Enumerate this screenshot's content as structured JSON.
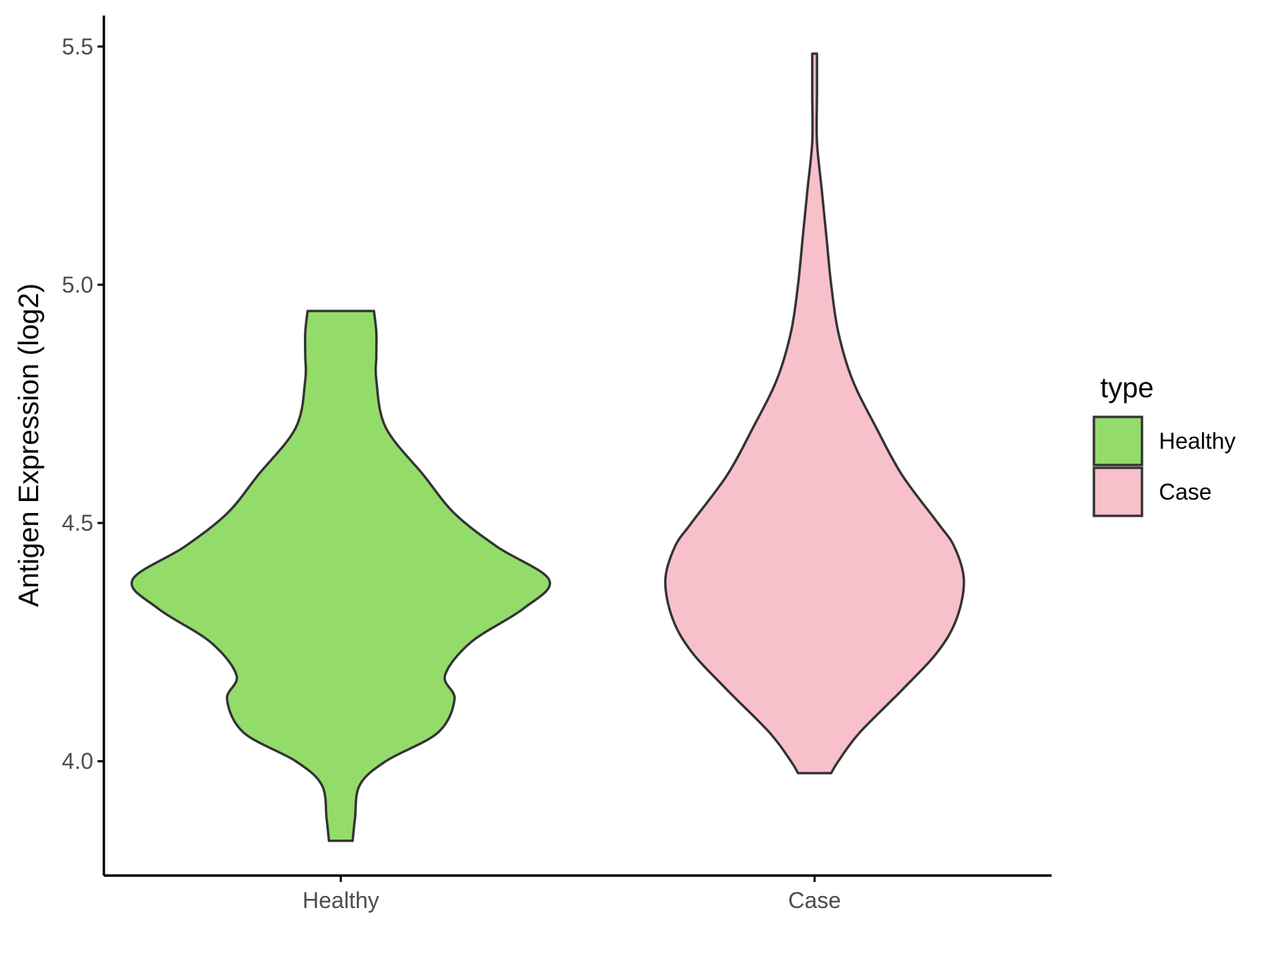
{
  "chart_data": {
    "type": "violin",
    "title": "",
    "xlabel": "",
    "ylabel": "Antigen Expression (log2)",
    "ylim": [
      3.76,
      5.565
    ],
    "yticks": [
      4.0,
      4.5,
      5.0,
      5.5
    ],
    "ytick_labels": [
      "4.0",
      "4.5",
      "5.0",
      "5.5"
    ],
    "categories": [
      "Healthy",
      "Case"
    ],
    "legend": {
      "title": "type",
      "position": "right",
      "entries": [
        "Healthy",
        "Case"
      ]
    },
    "grid": false,
    "series": [
      {
        "name": "Healthy",
        "color": "#93dc6a",
        "min": 3.833,
        "max": 4.945,
        "relative_width_profile": [
          [
            3.833,
            0.05
          ],
          [
            3.88,
            0.06
          ],
          [
            3.95,
            0.08
          ],
          [
            4.0,
            0.19
          ],
          [
            4.06,
            0.41
          ],
          [
            4.13,
            0.48
          ],
          [
            4.18,
            0.44
          ],
          [
            4.25,
            0.55
          ],
          [
            4.32,
            0.77
          ],
          [
            4.38,
            0.88
          ],
          [
            4.45,
            0.66
          ],
          [
            4.52,
            0.48
          ],
          [
            4.6,
            0.35
          ],
          [
            4.7,
            0.19
          ],
          [
            4.8,
            0.15
          ],
          [
            4.85,
            0.15
          ],
          [
            4.9,
            0.15
          ],
          [
            4.945,
            0.14
          ]
        ]
      },
      {
        "name": "Case",
        "color": "#f8c0cb",
        "min": 3.975,
        "max": 5.485,
        "relative_width_profile": [
          [
            3.975,
            0.07
          ],
          [
            4.0,
            0.1
          ],
          [
            4.06,
            0.19
          ],
          [
            4.15,
            0.37
          ],
          [
            4.23,
            0.52
          ],
          [
            4.3,
            0.6
          ],
          [
            4.38,
            0.63
          ],
          [
            4.45,
            0.59
          ],
          [
            4.5,
            0.52
          ],
          [
            4.6,
            0.37
          ],
          [
            4.7,
            0.26
          ],
          [
            4.8,
            0.16
          ],
          [
            4.9,
            0.1
          ],
          [
            5.0,
            0.07
          ],
          [
            5.1,
            0.05
          ],
          [
            5.2,
            0.03
          ],
          [
            5.3,
            0.01
          ],
          [
            5.4,
            0.01
          ],
          [
            5.485,
            0.01
          ]
        ]
      }
    ]
  }
}
